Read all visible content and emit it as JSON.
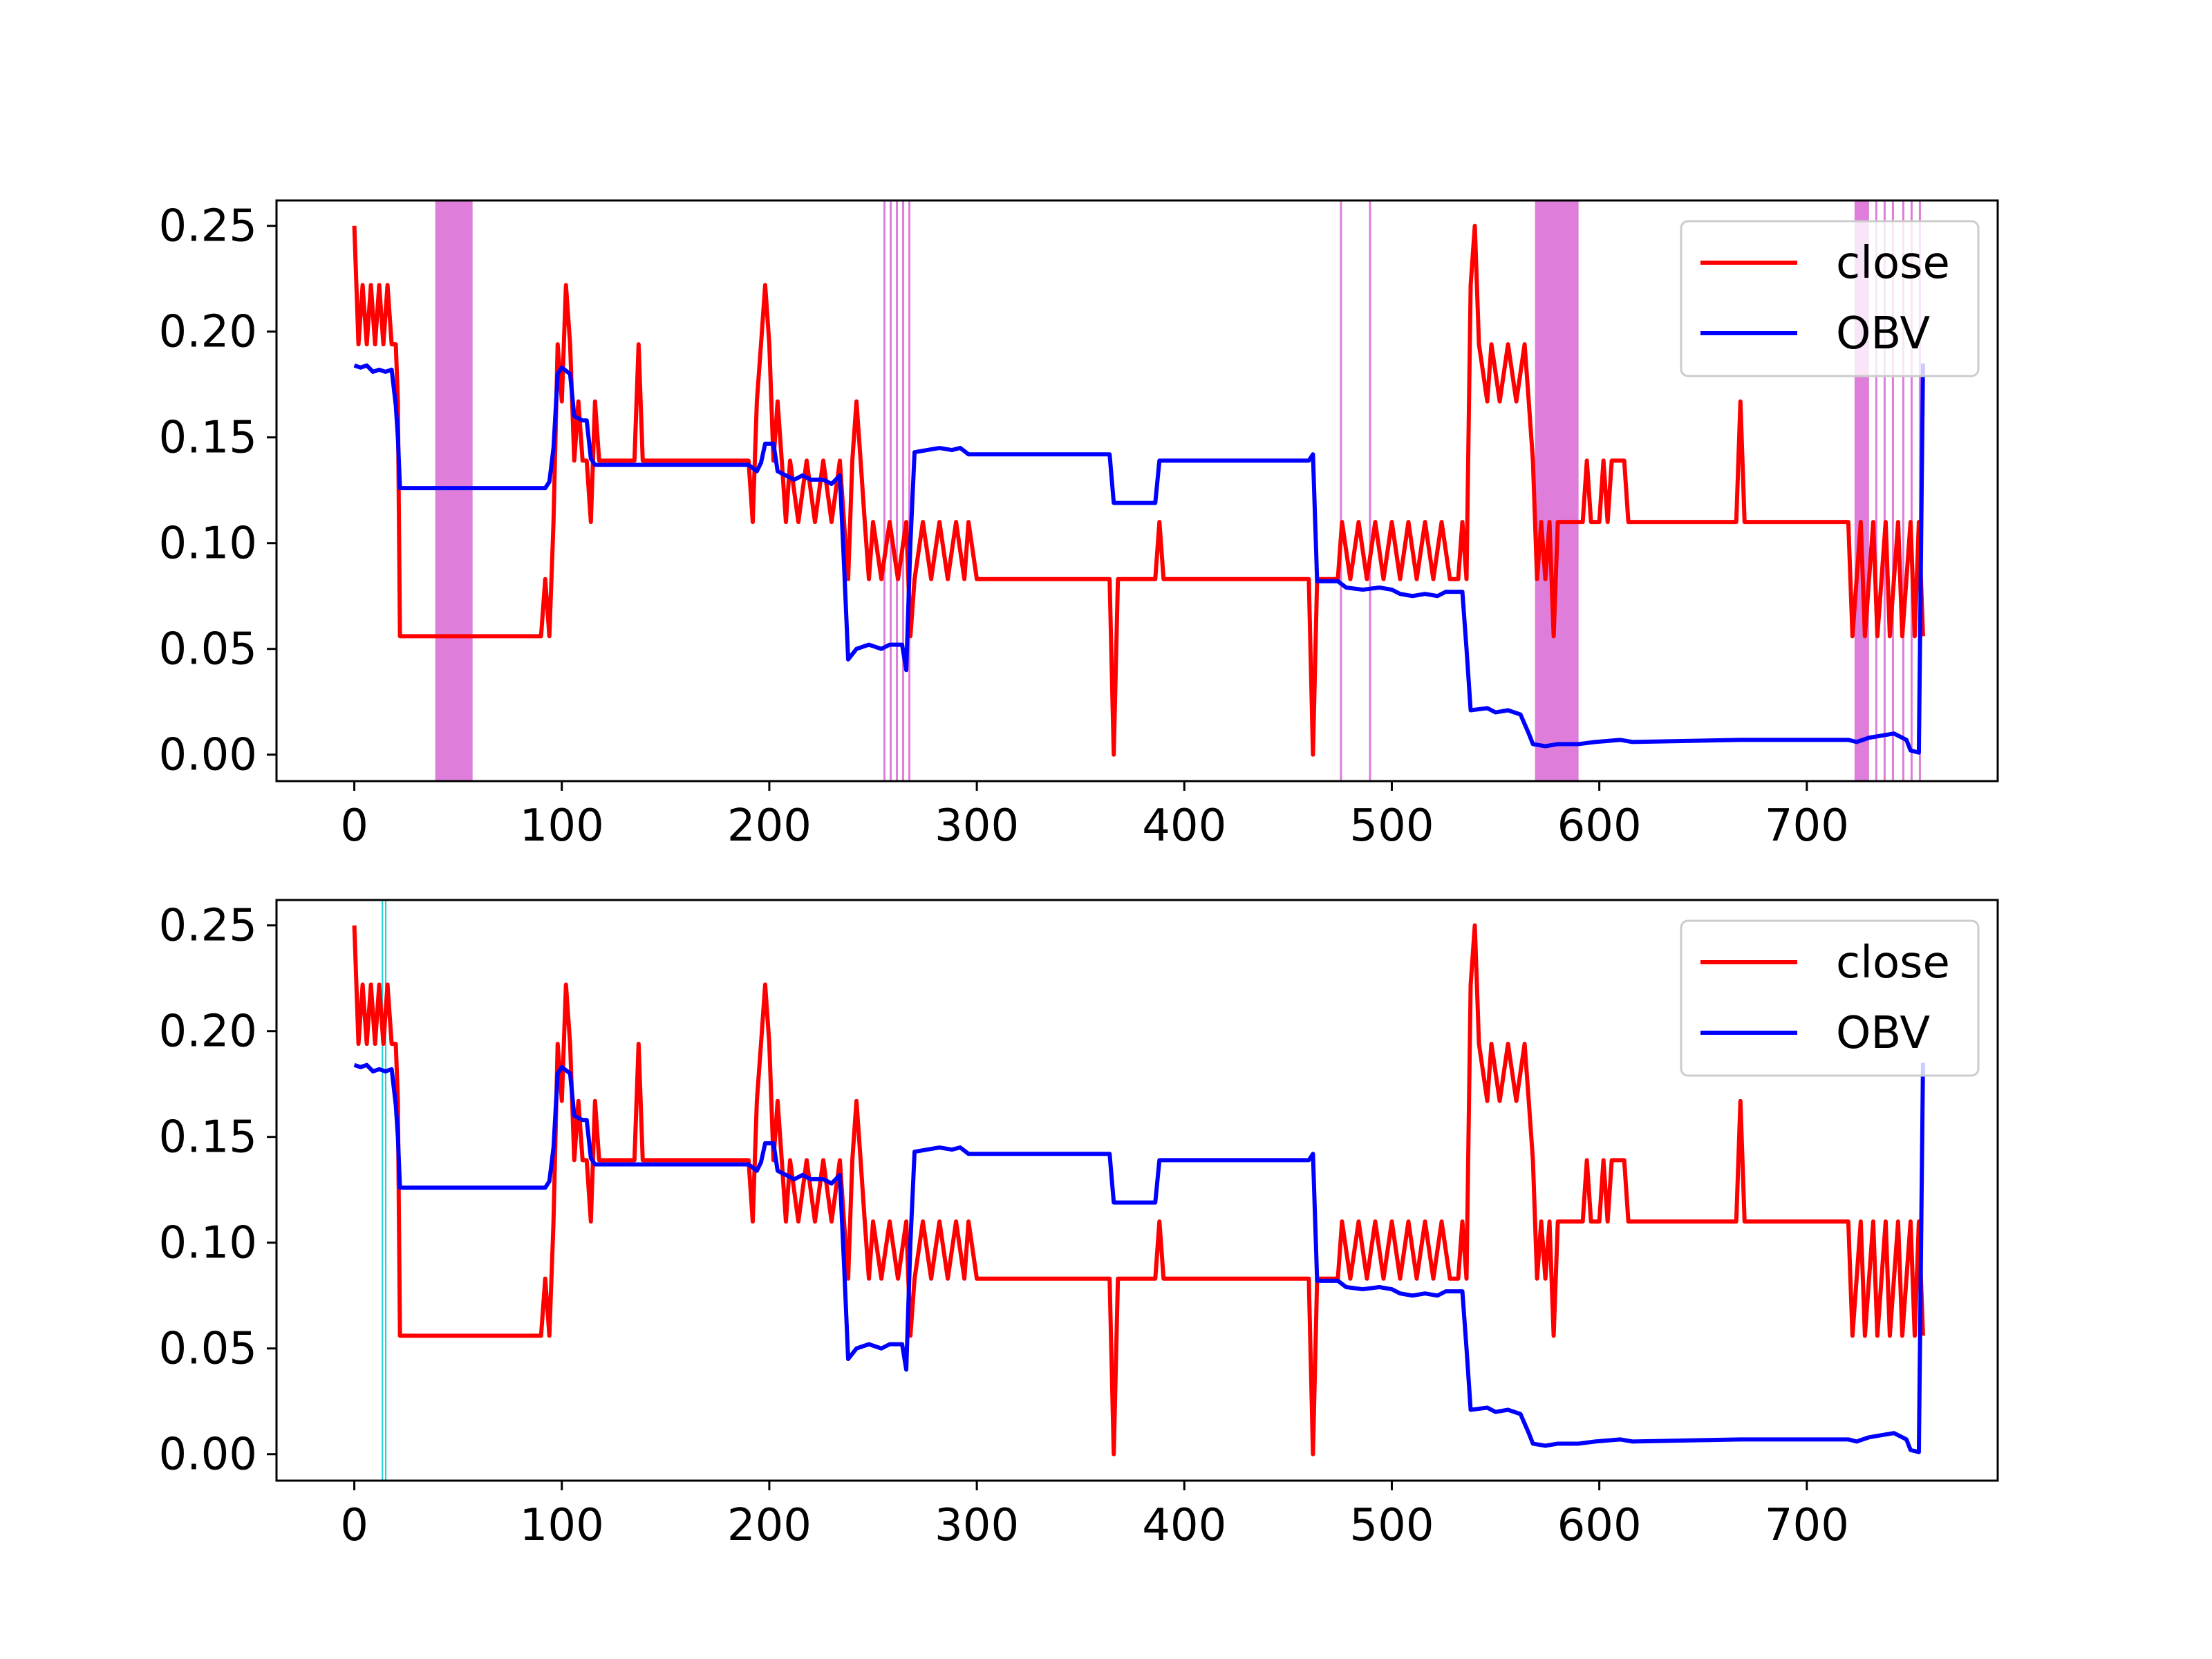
{
  "chart_data": [
    {
      "type": "line",
      "title": "",
      "xlabel": "",
      "ylabel": "",
      "xlim": [
        -37.5,
        792
      ],
      "ylim": [
        -0.0125,
        0.262
      ],
      "xticks": [
        0,
        100,
        200,
        300,
        400,
        500,
        600,
        700
      ],
      "yticks": [
        0.0,
        0.05,
        0.1,
        0.15,
        0.2,
        0.25
      ],
      "xtick_labels": [
        "0",
        "100",
        "200",
        "300",
        "400",
        "500",
        "600",
        "700"
      ],
      "ytick_labels": [
        "0.00",
        "0.05",
        "0.10",
        "0.15",
        "0.20",
        "0.25"
      ],
      "grid": false,
      "legend": {
        "placement": "upper right",
        "entries": [
          "close",
          "OBV"
        ]
      },
      "series": [
        {
          "name": "close",
          "color": "#ff0000",
          "points": [
            [
              0,
              0.25
            ],
            [
              2,
              0.194
            ],
            [
              4,
              0.222
            ],
            [
              6,
              0.194
            ],
            [
              8,
              0.222
            ],
            [
              10,
              0.194
            ],
            [
              12,
              0.222
            ],
            [
              14,
              0.194
            ],
            [
              16,
              0.222
            ],
            [
              18,
              0.194
            ],
            [
              20,
              0.194
            ],
            [
              21,
              0.167
            ],
            [
              22,
              0.056
            ],
            [
              90,
              0.056
            ],
            [
              92,
              0.083
            ],
            [
              94,
              0.056
            ],
            [
              96,
              0.11
            ],
            [
              98,
              0.194
            ],
            [
              100,
              0.167
            ],
            [
              102,
              0.222
            ],
            [
              104,
              0.194
            ],
            [
              106,
              0.139
            ],
            [
              108,
              0.167
            ],
            [
              110,
              0.139
            ],
            [
              112,
              0.139
            ],
            [
              114,
              0.11
            ],
            [
              116,
              0.167
            ],
            [
              118,
              0.139
            ],
            [
              135,
              0.139
            ],
            [
              137,
              0.194
            ],
            [
              139,
              0.139
            ],
            [
              190,
              0.139
            ],
            [
              192,
              0.11
            ],
            [
              194,
              0.167
            ],
            [
              196,
              0.194
            ],
            [
              198,
              0.222
            ],
            [
              200,
              0.194
            ],
            [
              202,
              0.139
            ],
            [
              204,
              0.167
            ],
            [
              206,
              0.139
            ],
            [
              208,
              0.11
            ],
            [
              210,
              0.139
            ],
            [
              214,
              0.11
            ],
            [
              218,
              0.139
            ],
            [
              222,
              0.11
            ],
            [
              226,
              0.139
            ],
            [
              230,
              0.11
            ],
            [
              234,
              0.139
            ],
            [
              236,
              0.11
            ],
            [
              238,
              0.083
            ],
            [
              240,
              0.139
            ],
            [
              242,
              0.167
            ],
            [
              244,
              0.139
            ],
            [
              246,
              0.11
            ],
            [
              248,
              0.083
            ],
            [
              250,
              0.11
            ],
            [
              254,
              0.083
            ],
            [
              258,
              0.11
            ],
            [
              262,
              0.083
            ],
            [
              266,
              0.11
            ],
            [
              268,
              0.056
            ],
            [
              270,
              0.083
            ],
            [
              274,
              0.11
            ],
            [
              278,
              0.083
            ],
            [
              282,
              0.11
            ],
            [
              286,
              0.083
            ],
            [
              290,
              0.11
            ],
            [
              294,
              0.083
            ],
            [
              296,
              0.11
            ],
            [
              300,
              0.083
            ],
            [
              364,
              0.083
            ],
            [
              366,
              0.0
            ],
            [
              368,
              0.083
            ],
            [
              386,
              0.083
            ],
            [
              388,
              0.11
            ],
            [
              390,
              0.083
            ],
            [
              460,
              0.083
            ],
            [
              462,
              0.0
            ],
            [
              464,
              0.083
            ],
            [
              474,
              0.083
            ],
            [
              476,
              0.11
            ],
            [
              480,
              0.083
            ],
            [
              484,
              0.11
            ],
            [
              488,
              0.083
            ],
            [
              492,
              0.11
            ],
            [
              496,
              0.083
            ],
            [
              500,
              0.11
            ],
            [
              504,
              0.083
            ],
            [
              508,
              0.11
            ],
            [
              512,
              0.083
            ],
            [
              516,
              0.11
            ],
            [
              520,
              0.083
            ],
            [
              524,
              0.11
            ],
            [
              528,
              0.083
            ],
            [
              532,
              0.083
            ],
            [
              534,
              0.11
            ],
            [
              536,
              0.083
            ],
            [
              538,
              0.222
            ],
            [
              540,
              0.25
            ],
            [
              542,
              0.194
            ],
            [
              546,
              0.167
            ],
            [
              548,
              0.194
            ],
            [
              552,
              0.167
            ],
            [
              556,
              0.194
            ],
            [
              560,
              0.167
            ],
            [
              564,
              0.194
            ],
            [
              566,
              0.167
            ],
            [
              568,
              0.139
            ],
            [
              570,
              0.083
            ],
            [
              572,
              0.11
            ],
            [
              574,
              0.083
            ],
            [
              576,
              0.11
            ],
            [
              578,
              0.056
            ],
            [
              580,
              0.11
            ],
            [
              592,
              0.11
            ],
            [
              594,
              0.139
            ],
            [
              596,
              0.11
            ],
            [
              600,
              0.11
            ],
            [
              602,
              0.139
            ],
            [
              604,
              0.11
            ],
            [
              606,
              0.139
            ],
            [
              612,
              0.139
            ],
            [
              614,
              0.11
            ],
            [
              666,
              0.11
            ],
            [
              668,
              0.167
            ],
            [
              670,
              0.11
            ],
            [
              720,
              0.11
            ],
            [
              722,
              0.056
            ],
            [
              726,
              0.11
            ],
            [
              728,
              0.056
            ],
            [
              732,
              0.11
            ],
            [
              734,
              0.056
            ],
            [
              738,
              0.11
            ],
            [
              740,
              0.056
            ],
            [
              744,
              0.11
            ],
            [
              746,
              0.056
            ],
            [
              750,
              0.11
            ],
            [
              752,
              0.056
            ],
            [
              754,
              0.11
            ],
            [
              756,
              0.056
            ]
          ]
        },
        {
          "name": "OBV",
          "color": "#0000ff",
          "points": [
            [
              0,
              0.184
            ],
            [
              3,
              0.183
            ],
            [
              6,
              0.184
            ],
            [
              9,
              0.181
            ],
            [
              12,
              0.182
            ],
            [
              15,
              0.181
            ],
            [
              18,
              0.182
            ],
            [
              20,
              0.165
            ],
            [
              21,
              0.15
            ],
            [
              22,
              0.126
            ],
            [
              92,
              0.126
            ],
            [
              94,
              0.129
            ],
            [
              96,
              0.145
            ],
            [
              98,
              0.18
            ],
            [
              100,
              0.183
            ],
            [
              104,
              0.18
            ],
            [
              106,
              0.16
            ],
            [
              110,
              0.158
            ],
            [
              112,
              0.158
            ],
            [
              114,
              0.14
            ],
            [
              116,
              0.137
            ],
            [
              190,
              0.137
            ],
            [
              194,
              0.134
            ],
            [
              196,
              0.138
            ],
            [
              198,
              0.147
            ],
            [
              202,
              0.147
            ],
            [
              204,
              0.134
            ],
            [
              208,
              0.132
            ],
            [
              212,
              0.13
            ],
            [
              216,
              0.132
            ],
            [
              220,
              0.13
            ],
            [
              226,
              0.13
            ],
            [
              230,
              0.128
            ],
            [
              234,
              0.132
            ],
            [
              236,
              0.09
            ],
            [
              238,
              0.045
            ],
            [
              242,
              0.05
            ],
            [
              248,
              0.052
            ],
            [
              254,
              0.05
            ],
            [
              258,
              0.052
            ],
            [
              264,
              0.052
            ],
            [
              266,
              0.04
            ],
            [
              268,
              0.1
            ],
            [
              270,
              0.143
            ],
            [
              276,
              0.144
            ],
            [
              282,
              0.145
            ],
            [
              288,
              0.144
            ],
            [
              292,
              0.145
            ],
            [
              296,
              0.142
            ],
            [
              364,
              0.142
            ],
            [
              366,
              0.119
            ],
            [
              386,
              0.119
            ],
            [
              388,
              0.139
            ],
            [
              460,
              0.139
            ],
            [
              462,
              0.142
            ],
            [
              464,
              0.082
            ],
            [
              474,
              0.082
            ],
            [
              478,
              0.079
            ],
            [
              486,
              0.078
            ],
            [
              494,
              0.079
            ],
            [
              500,
              0.078
            ],
            [
              504,
              0.076
            ],
            [
              510,
              0.075
            ],
            [
              516,
              0.076
            ],
            [
              522,
              0.075
            ],
            [
              526,
              0.077
            ],
            [
              534,
              0.077
            ],
            [
              536,
              0.05
            ],
            [
              538,
              0.021
            ],
            [
              546,
              0.022
            ],
            [
              550,
              0.02
            ],
            [
              556,
              0.021
            ],
            [
              562,
              0.019
            ],
            [
              566,
              0.01
            ],
            [
              568,
              0.005
            ],
            [
              574,
              0.004
            ],
            [
              580,
              0.005
            ],
            [
              590,
              0.005
            ],
            [
              598,
              0.006
            ],
            [
              610,
              0.007
            ],
            [
              616,
              0.006
            ],
            [
              668,
              0.007
            ],
            [
              720,
              0.007
            ],
            [
              724,
              0.006
            ],
            [
              730,
              0.008
            ],
            [
              736,
              0.009
            ],
            [
              742,
              0.01
            ],
            [
              748,
              0.007
            ],
            [
              750,
              0.002
            ],
            [
              754,
              0.001
            ],
            [
              756,
              0.185
            ]
          ]
        }
      ],
      "highlight_bands": {
        "color": "#da70d6",
        "ranges": [
          [
            39,
            57
          ],
          [
            255,
            256
          ],
          [
            258,
            259
          ],
          [
            261,
            262
          ],
          [
            264,
            265
          ],
          [
            267,
            268
          ],
          [
            475,
            476
          ],
          [
            489,
            490
          ],
          [
            569,
            590
          ],
          [
            723,
            730
          ],
          [
            733,
            734
          ],
          [
            737,
            738
          ],
          [
            741,
            742
          ],
          [
            746,
            747
          ],
          [
            750,
            751
          ],
          [
            754,
            755
          ]
        ]
      }
    },
    {
      "type": "line",
      "title": "",
      "xlabel": "",
      "ylabel": "",
      "xlim": [
        -37.5,
        792
      ],
      "ylim": [
        -0.0125,
        0.262
      ],
      "xticks": [
        0,
        100,
        200,
        300,
        400,
        500,
        600,
        700
      ],
      "yticks": [
        0.0,
        0.05,
        0.1,
        0.15,
        0.2,
        0.25
      ],
      "xtick_labels": [
        "0",
        "100",
        "200",
        "300",
        "400",
        "500",
        "600",
        "700"
      ],
      "ytick_labels": [
        "0.00",
        "0.05",
        "0.10",
        "0.15",
        "0.20",
        "0.25"
      ],
      "grid": false,
      "legend": {
        "placement": "upper right",
        "entries": [
          "close",
          "OBV"
        ]
      },
      "series": [
        {
          "name": "close",
          "color": "#ff0000",
          "points": "same-as-top"
        },
        {
          "name": "OBV",
          "color": "#0000ff",
          "points": "same-as-top"
        }
      ],
      "highlight_bands": {
        "color": "#00ced1",
        "ranges": [
          [
            13.2,
            13.6
          ],
          [
            14.8,
            15.2
          ]
        ]
      }
    }
  ]
}
